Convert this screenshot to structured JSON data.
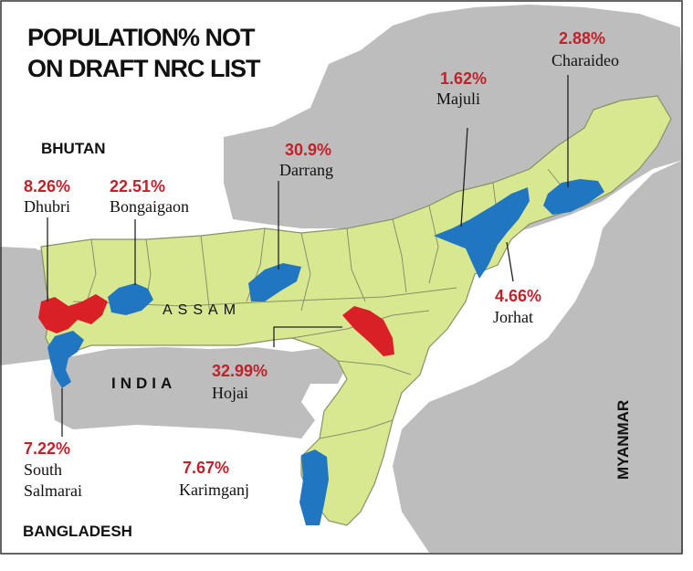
{
  "title": {
    "line1": "POPULATION% NOT",
    "line2": "ON DRAFT NRC LIST"
  },
  "colors": {
    "state": "#d8e890",
    "neighbor": "#bdbdbd",
    "border": "#8a8f6a",
    "high": "#d92027",
    "low": "#2176c2",
    "pct_text": "#c0222a"
  },
  "regions": {
    "state": "ASSAM",
    "india": "INDIA",
    "bhutan": "BHUTAN",
    "bangladesh": "BANGLADESH",
    "myanmar": "MYANMAR"
  },
  "districts": [
    {
      "name": "Dhubri",
      "value": "8.26%",
      "level": "high"
    },
    {
      "name": "Bongaigaon",
      "value": "22.51%",
      "level": "low"
    },
    {
      "name": "Darrang",
      "value": "30.9%",
      "level": "low"
    },
    {
      "name": "Majuli",
      "value": "1.62%",
      "level": "low"
    },
    {
      "name": "Charaideo",
      "value": "2.88%",
      "level": "low"
    },
    {
      "name": "Jorhat",
      "value": "4.66%",
      "level": "low"
    },
    {
      "name": "Hojai",
      "value": "32.99%",
      "level": "high"
    },
    {
      "name": "South Salmarai",
      "name_line1": "South",
      "name_line2": "Salmarai",
      "value": "7.22%",
      "level": "low"
    },
    {
      "name": "Karimganj",
      "value": "7.67%",
      "level": "low"
    }
  ]
}
